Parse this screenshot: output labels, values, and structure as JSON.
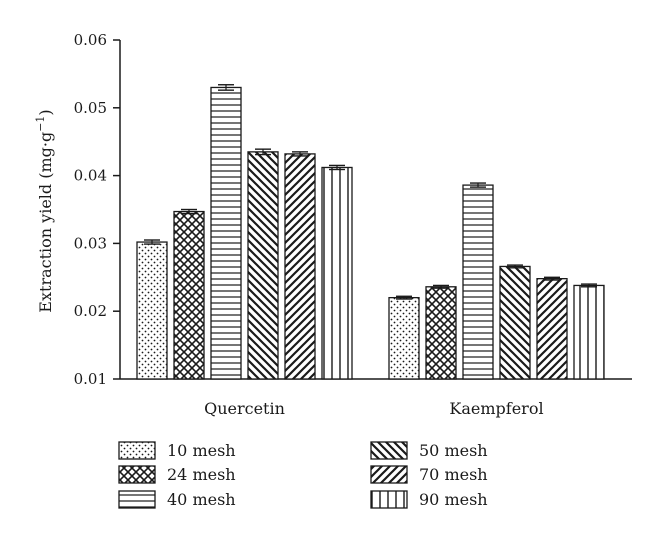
{
  "chart_data": {
    "type": "bar",
    "title": "",
    "xlabel": "",
    "ylabel": "Extraction yield (mg·g",
    "ylabel_sup": "−1",
    "ylabel_close": ")",
    "ylim": [
      0.01,
      0.06
    ],
    "yticks": [
      "0.01",
      "0.02",
      "0.03",
      "0.04",
      "0.05",
      "0.06"
    ],
    "ytick_values": [
      0.01,
      0.02,
      0.03,
      0.04,
      0.05,
      0.06
    ],
    "categories": [
      "Quercetin",
      "Kaempferol"
    ],
    "series": [
      {
        "name": "10 mesh",
        "values": [
          0.0302,
          0.022
        ],
        "errors": [
          0.0003,
          0.0002
        ],
        "pattern": "dots"
      },
      {
        "name": "24 mesh",
        "values": [
          0.0347,
          0.0236
        ],
        "errors": [
          0.0003,
          0.0002
        ],
        "pattern": "crosshatch"
      },
      {
        "name": "40 mesh",
        "values": [
          0.053,
          0.0386
        ],
        "errors": [
          0.0004,
          0.0003
        ],
        "pattern": "horizontal"
      },
      {
        "name": "50 mesh",
        "values": [
          0.0435,
          0.0266
        ],
        "errors": [
          0.0004,
          0.0002
        ],
        "pattern": "backdiag"
      },
      {
        "name": "70 mesh",
        "values": [
          0.0432,
          0.0248
        ],
        "errors": [
          0.0003,
          0.0002
        ],
        "pattern": "fwddiag"
      },
      {
        "name": "90 mesh",
        "values": [
          0.0412,
          0.0238
        ],
        "errors": [
          0.0003,
          0.0002
        ],
        "pattern": "vertical"
      }
    ],
    "grid": false,
    "legend_position": "bottom",
    "colors": {
      "ink": "#1a1a1a",
      "background": "#ffffff"
    }
  }
}
